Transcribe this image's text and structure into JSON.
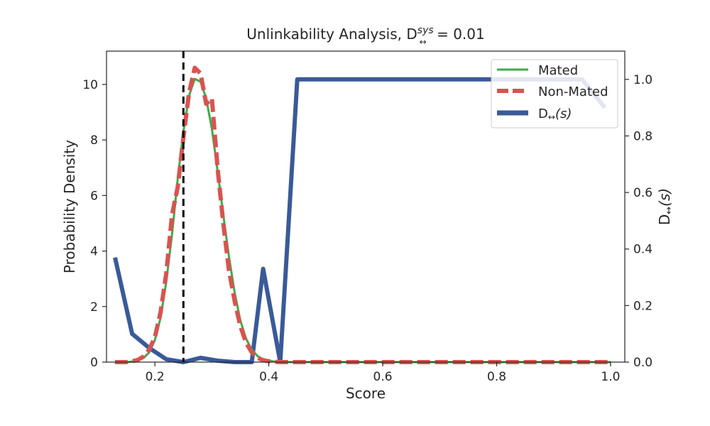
{
  "chart_data": {
    "type": "line",
    "title": {
      "prefix": "Unlinkability Analysis, D",
      "sup": "sys",
      "sub": "↔",
      "suffix": " = 0.01"
    },
    "xlabel": "Score",
    "ylabel": "Probability Density",
    "y2label": "D",
    "y2label_sub": "↔",
    "y2label_arg": "(s)",
    "xlim": [
      0.115,
      1.025
    ],
    "ylim": [
      0,
      11.2
    ],
    "y2lim": [
      0,
      1.1
    ],
    "xticks": [
      "0.2",
      "0.4",
      "0.6",
      "0.8",
      "1.0"
    ],
    "yticks": [
      "0",
      "2",
      "4",
      "6",
      "8",
      "10"
    ],
    "y2ticks": [
      "0.0",
      "0.2",
      "0.4",
      "0.6",
      "0.8",
      "1.0"
    ],
    "grid": false,
    "legend_position": "top-right",
    "threshold_x": 0.25,
    "series": [
      {
        "name": "Mated",
        "axis": "left",
        "color": "#3cac4a",
        "style": "solid",
        "x": [
          0.13,
          0.14,
          0.15,
          0.16,
          0.17,
          0.18,
          0.19,
          0.2,
          0.21,
          0.22,
          0.23,
          0.24,
          0.25,
          0.26,
          0.27,
          0.28,
          0.29,
          0.3,
          0.31,
          0.32,
          0.33,
          0.34,
          0.35,
          0.36,
          0.37,
          0.38,
          0.39,
          0.4,
          0.41,
          0.42,
          0.43,
          0.45,
          0.5,
          0.6,
          0.7,
          0.8,
          0.9,
          1.0
        ],
        "y": [
          0,
          0,
          0,
          0.02,
          0.06,
          0.15,
          0.35,
          0.8,
          1.6,
          2.9,
          4.6,
          6.6,
          8.3,
          9.6,
          10.2,
          10.1,
          9.5,
          8.4,
          6.9,
          5.3,
          3.8,
          2.5,
          1.5,
          0.85,
          0.45,
          0.22,
          0.1,
          0.05,
          0.02,
          0.01,
          0,
          0,
          0,
          0,
          0,
          0,
          0,
          0
        ]
      },
      {
        "name": "Non-Mated",
        "axis": "left",
        "color": "#d9534f",
        "style": "dashed",
        "x": [
          0.13,
          0.14,
          0.15,
          0.16,
          0.17,
          0.18,
          0.19,
          0.2,
          0.21,
          0.22,
          0.23,
          0.24,
          0.25,
          0.26,
          0.27,
          0.28,
          0.29,
          0.3,
          0.31,
          0.32,
          0.33,
          0.34,
          0.35,
          0.36,
          0.37,
          0.38,
          0.39,
          0.4,
          0.41,
          0.42,
          0.43,
          0.45,
          0.5,
          0.6,
          0.7,
          0.8,
          0.9,
          1.0
        ],
        "y": [
          0,
          0,
          0,
          0.03,
          0.08,
          0.2,
          0.45,
          0.9,
          1.8,
          3.2,
          5.3,
          6.3,
          8.1,
          9.7,
          10.6,
          10.4,
          9.3,
          9.5,
          7.0,
          5.0,
          3.3,
          2.2,
          1.3,
          0.7,
          0.35,
          0.15,
          0.07,
          0.03,
          0.01,
          0,
          0,
          0,
          0,
          0,
          0,
          0,
          0,
          0
        ]
      },
      {
        "name": "D",
        "name_sub": "↔",
        "name_arg": "(s)",
        "axis": "right",
        "color": "#3a5a98",
        "style": "solid",
        "x": [
          0.13,
          0.16,
          0.19,
          0.22,
          0.25,
          0.28,
          0.31,
          0.34,
          0.37,
          0.39,
          0.42,
          0.45,
          0.48,
          0.6,
          0.8,
          0.95,
          0.99
        ],
        "y": [
          0.37,
          0.1,
          0.05,
          0.01,
          0.0,
          0.015,
          0.005,
          0.0,
          0.0,
          0.33,
          0.0,
          1.0,
          1.0,
          1.0,
          1.0,
          1.0,
          0.9
        ]
      }
    ]
  }
}
